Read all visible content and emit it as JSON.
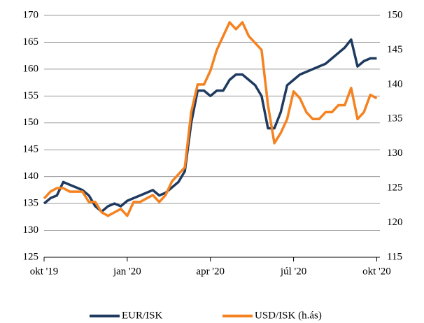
{
  "chart_data": {
    "type": "line",
    "x": [
      0,
      1,
      2,
      3,
      4,
      5,
      6,
      7,
      8,
      9,
      10,
      11,
      12,
      13,
      14,
      15,
      16,
      17,
      18,
      19,
      20,
      21,
      22,
      23,
      24,
      25,
      26,
      27,
      28,
      29,
      30,
      31,
      32,
      33,
      34,
      35,
      36,
      37,
      38,
      39,
      40,
      41,
      42,
      43,
      44,
      45,
      46,
      47,
      48,
      49,
      50,
      51,
      52
    ],
    "xlim": [
      0,
      52.5
    ],
    "xticks": [
      {
        "value": 0,
        "label": "okt '19"
      },
      {
        "value": 13,
        "label": "jan '20"
      },
      {
        "value": 26,
        "label": "apr '20"
      },
      {
        "value": 39,
        "label": "júl '20"
      },
      {
        "value": 52,
        "label": "okt '20"
      }
    ],
    "ylim": [
      125,
      170
    ],
    "yticks": [
      125,
      130,
      135,
      140,
      145,
      150,
      155,
      160,
      165,
      170
    ],
    "y2lim": [
      115,
      150
    ],
    "y2ticks": [
      115,
      120,
      125,
      130,
      135,
      140,
      145,
      150
    ],
    "grid": true,
    "legend": "bottom",
    "series": [
      {
        "name": "EUR/ISK",
        "color": "#1f3a5f",
        "values": [
          135,
          136,
          136.5,
          139,
          138.5,
          138,
          137.5,
          136.5,
          134.5,
          133.5,
          134.5,
          135,
          134.5,
          135.5,
          136,
          136.5,
          137,
          137.5,
          136.5,
          137,
          138,
          139,
          141,
          150,
          156,
          156,
          155,
          156,
          156,
          158,
          159,
          159,
          158,
          157,
          155,
          149,
          149,
          152,
          157,
          158,
          159,
          159.5,
          160,
          160.5,
          161,
          162,
          163,
          164,
          165.5,
          160.5,
          161.5,
          162,
          162
        ]
      },
      {
        "name": "USD/ISK (h.ás)",
        "color": "#f58220",
        "axis": "y2",
        "values": [
          123.5,
          124.5,
          125,
          125,
          124.5,
          124.5,
          124.5,
          123,
          123,
          121.5,
          121,
          121.5,
          122,
          121,
          123,
          123,
          123.5,
          124,
          123,
          124,
          126,
          127,
          128,
          136,
          140,
          140,
          142,
          145,
          147,
          149,
          148,
          149,
          147,
          146,
          145,
          137,
          131.5,
          133,
          135,
          139,
          138,
          136,
          135,
          135,
          136,
          136,
          137,
          137,
          139.5,
          135,
          136,
          138.5,
          138
        ]
      }
    ]
  }
}
